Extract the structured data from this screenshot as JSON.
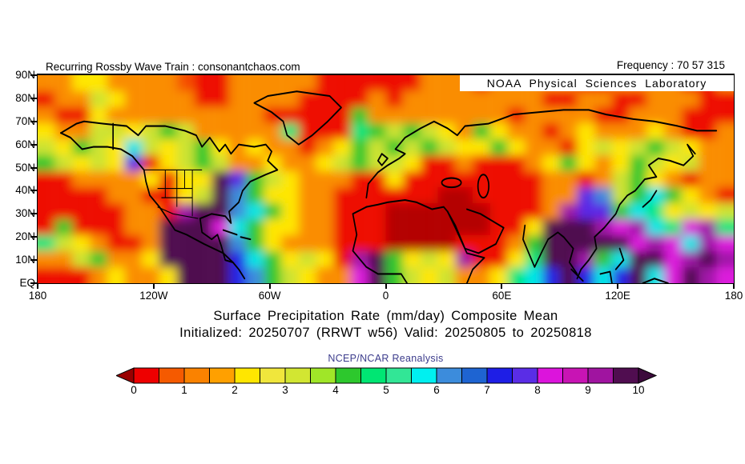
{
  "header": {
    "left_text": "Recurring Rossby Wave Train : consonantchaos.com",
    "right_text": "Frequency : 70 57 315"
  },
  "overlay": {
    "label": "NOAA Physical Sciences Laboratory"
  },
  "titles": {
    "line1": "Surface Precipitation Rate (mm/day) Composite Mean",
    "line2": "Initialized: 20250707 (RRWT w56) Valid: 20250805 to 20250818",
    "subtitle": "NCEP/NCAR Reanalysis"
  },
  "colors": {
    "subtitle_text": "#3c3c8c",
    "frame": "#000000"
  },
  "chart_data": {
    "type": "heatmap",
    "title": "Surface Precipitation Rate (mm/day) Composite Mean",
    "subtitle": "Initialized: 20250707 (RRWT w56) Valid: 20250805 to 20250818",
    "source_label": "NCEP/NCAR Reanalysis",
    "units": "mm/day",
    "y_axis": {
      "labels": [
        "90N",
        "80N",
        "70N",
        "60N",
        "50N",
        "40N",
        "30N",
        "20N",
        "10N",
        "EQ"
      ],
      "range_deg": [
        90,
        0
      ]
    },
    "x_axis": {
      "labels": [
        "180",
        "120W",
        "60W",
        "0",
        "60E",
        "120E",
        "180"
      ],
      "range_deg": [
        -180,
        180
      ]
    },
    "colorbar": {
      "min": 0,
      "max": 10,
      "tick_labels": [
        "0",
        "1",
        "2",
        "3",
        "4",
        "5",
        "6",
        "7",
        "8",
        "9",
        "10"
      ],
      "segment_colors": [
        "#ee0000",
        "#f55a00",
        "#fa8200",
        "#ffa000",
        "#ffe600",
        "#f0e63c",
        "#d2e632",
        "#a0e628",
        "#2dc82d",
        "#00e673",
        "#32e696",
        "#00f0f0",
        "#3c8cdc",
        "#1e64d2",
        "#1e1ee6",
        "#5a2de6",
        "#dc14dc",
        "#c814b4",
        "#a014a0",
        "#500d50"
      ],
      "under_arrow_color": "#990000",
      "over_arrow_color": "#3c0a3c"
    },
    "grid": {
      "cols": 40,
      "rows": 13,
      "lon_range": [
        -180,
        180
      ],
      "lat_range": [
        90,
        0
      ],
      "palette": {
        "R": "#b40000",
        "r": "#ee1000",
        "s": "#f55000",
        "o": "#fa8c00",
        "y": "#ffe600",
        "l": "#cde332",
        "g": "#2dc82d",
        "G": "#00e67d",
        "c": "#00e6e6",
        "b": "#3c8cdc",
        "B": "#2828e6",
        "v": "#5a28e6",
        "m": "#dc1edc",
        "p": "#a018a8",
        "P": "#500d50"
      },
      "rows_data": [
        "ooyyoooosrrooooorrrrrrooorooooorroooorro",
        "roolyoooorroooorrrroroooooooorroorrooorr",
        "orryooooooooorrrrrgooooooooroooorrooorrr",
        "yoollylgloooooGrrrGglglyogyooroyoooyorro",
        "lyglyclylgyoyooroyglglglyygyoorylylglyoo",
        "glylyvrylglooyooylgllyrrorrroygyoyglyloo",
        "rrooooyryyPvglyooorryrrrrrrrroorolgyoroo",
        "rrrroorrylPbgyyoorrrrrrRRrrrroovblgcgyor",
        "rrrrroorpPPbcgyoorrrRRRRRRrrropvvgcGylyl",
        "rgrrrooPPPmcgyyoorrrRRRRRRrryPPPpmpcGmpG",
        "GlyorroPPPPbgyooorrrRRRRrrrogPPPPPmpmcpm",
        "oolgooyPPPPBcgylyrpPgylyprryGPPpgcPPmpPp",
        "rrroyooyPPPBbglyoomPglylooyGcBPBcBPcmPpm"
      ]
    }
  }
}
